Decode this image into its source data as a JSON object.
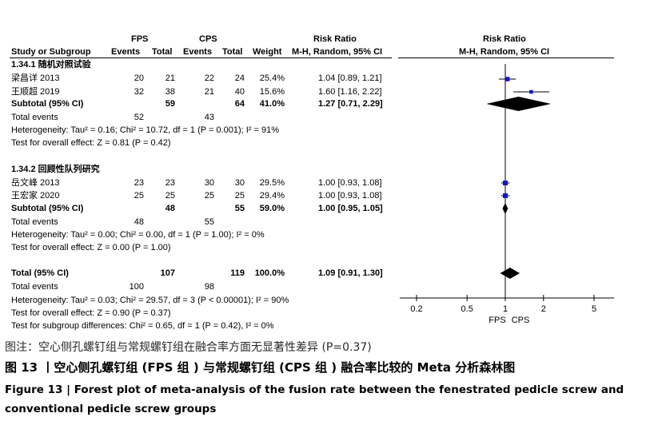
{
  "header": {
    "fps": "FPS",
    "cps": "CPS",
    "risk_ratio_left": "Risk Ratio",
    "risk_ratio_right": "Risk Ratio",
    "study_col": "Study or Subgroup",
    "events1": "Events",
    "total1": "Total",
    "events2": "Events",
    "total2": "Total",
    "weight": "Weight",
    "method_left": "M-H, Random, 95% CI",
    "method_right": "M-H, Random, 95% CI"
  },
  "groups": [
    {
      "title": "1.34.1 随机对照试验",
      "studies": [
        {
          "name": "梁昌详 2013",
          "e1": "20",
          "t1": "21",
          "e2": "22",
          "t2": "24",
          "weight": "25.4%",
          "ci": "1.04 [0.89, 1.21]"
        },
        {
          "name": "王顺超 2019",
          "e1": "32",
          "t1": "38",
          "e2": "21",
          "t2": "40",
          "weight": "15.6%",
          "ci": "1.60 [1.16, 2.22]"
        }
      ],
      "subtotal": {
        "label": "Subtotal (95% CI)",
        "t1": "59",
        "t2": "64",
        "weight": "41.0%",
        "ci": "1.27 [0.71, 2.29]"
      },
      "events": {
        "label": "Total events",
        "e1": "52",
        "e2": "43"
      },
      "heterogeneity": "Heterogeneity: Tau² = 0.16; Chi² = 10.72, df = 1 (P = 0.001); I² = 91%",
      "overall": "Test for overall effect: Z = 0.81 (P = 0.42)"
    },
    {
      "title": "1.34.2 回顾性队列研究",
      "studies": [
        {
          "name": "岳文峰 2013",
          "e1": "23",
          "t1": "23",
          "e2": "30",
          "t2": "30",
          "weight": "29.5%",
          "ci": "1.00 [0.93, 1.08]"
        },
        {
          "name": "王宏家 2020",
          "e1": "25",
          "t1": "25",
          "e2": "25",
          "t2": "25",
          "weight": "29.4%",
          "ci": "1.00 [0.93, 1.08]"
        }
      ],
      "subtotal": {
        "label": "Subtotal (95% CI)",
        "t1": "48",
        "t2": "55",
        "weight": "59.0%",
        "ci": "1.00 [0.95, 1.05]"
      },
      "events": {
        "label": "Total events",
        "e1": "48",
        "e2": "55"
      },
      "heterogeneity": "Heterogeneity: Tau² = 0.00; Chi² = 0.00, df = 1 (P = 1.00); I² = 0%",
      "overall": "Test for overall effect: Z = 0.00 (P = 1.00)"
    }
  ],
  "total": {
    "label": "Total (95% CI)",
    "t1": "107",
    "t2": "119",
    "weight": "100.0%",
    "ci": "1.09 [0.91, 1.30]",
    "events_label": "Total events",
    "e1": "100",
    "e2": "98",
    "heterogeneity": "Heterogeneity: Tau² = 0.03; Chi² = 29.57, df = 3 (P < 0.00001); I² = 90%",
    "overall": "Test for overall effect: Z = 0.90 (P = 0.37)",
    "subgroup": "Test for subgroup differences: Chi² = 0.65, df = 1 (P = 0.42), I² = 0%"
  },
  "chart_data": {
    "type": "scatter",
    "scale": "log",
    "xlim": [
      0.2,
      5
    ],
    "ticks": [
      0.2,
      0.5,
      1,
      2,
      5
    ],
    "tick_labels": [
      "0.2",
      "0.5",
      "1",
      "2",
      "5"
    ],
    "axis_left_label": "FPS",
    "axis_right_label": "CPS",
    "null_line": 1,
    "points": [
      {
        "study": "梁昌详 2013",
        "rr": 1.04,
        "lo": 0.89,
        "hi": 1.21,
        "weight": 25.4
      },
      {
        "study": "王顺超 2019",
        "rr": 1.6,
        "lo": 1.16,
        "hi": 2.22,
        "weight": 15.6
      },
      {
        "study": "岳文峰 2013",
        "rr": 1.0,
        "lo": 0.93,
        "hi": 1.08,
        "weight": 29.5
      },
      {
        "study": "王宏家 2020",
        "rr": 1.0,
        "lo": 0.93,
        "hi": 1.08,
        "weight": 29.4
      }
    ],
    "diamonds": [
      {
        "label": "Subtotal 1.34.1",
        "rr": 1.27,
        "lo": 0.71,
        "hi": 2.29
      },
      {
        "label": "Subtotal 1.34.2",
        "rr": 1.0,
        "lo": 0.95,
        "hi": 1.05
      },
      {
        "label": "Total",
        "rr": 1.09,
        "lo": 0.91,
        "hi": 1.3
      }
    ],
    "marker_color": "#1515c8"
  },
  "captions": {
    "note": "图注：空心侧孔螺钉组与常规螺钉组在融合率方面无显著性差异 (P=0.37)",
    "title_cn": "图 13 丨空心侧孔螺钉组 (FPS 组 ) 与常规螺钉组 (CPS 组 ) 融合率比较的 Meta 分析森林图",
    "title_en": "Figure 13 | Forest plot of meta-analysis of the fusion rate between the fenestrated pedicle screw and conventional pedicle screw groups"
  }
}
